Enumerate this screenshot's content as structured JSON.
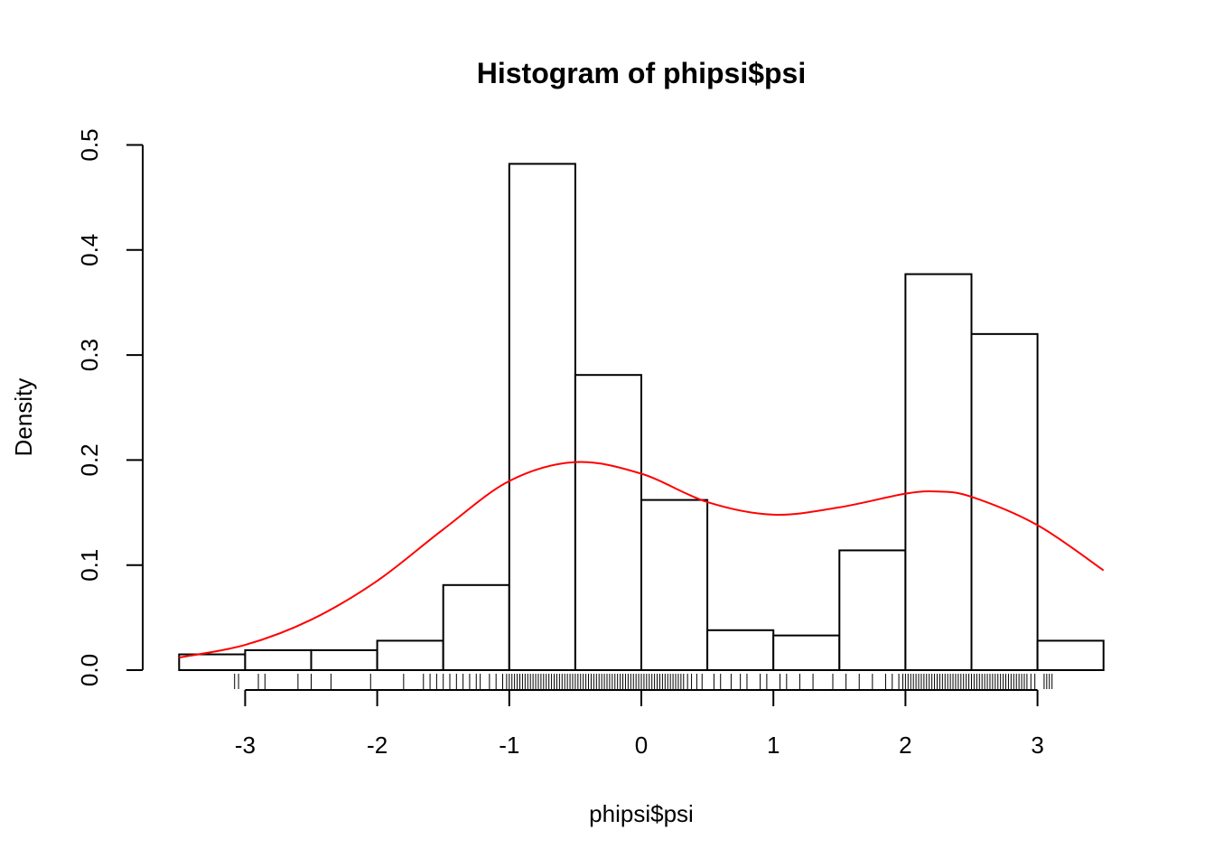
{
  "chart_data": {
    "type": "bar",
    "title": "Histogram of phipsi$psi",
    "xlabel": "phipsi$psi",
    "ylabel": "Density",
    "xlim": [
      -3.5,
      3.5
    ],
    "ylim": [
      0,
      0.5
    ],
    "x_ticks": [
      -3,
      -2,
      -1,
      0,
      1,
      2,
      3
    ],
    "x_tick_labels": [
      "-3",
      "-2",
      "-1",
      "0",
      "1",
      "2",
      "3"
    ],
    "y_ticks": [
      0,
      0.1,
      0.2,
      0.3,
      0.4,
      0.5
    ],
    "y_tick_labels": [
      "0.0",
      "0.1",
      "0.2",
      "0.3",
      "0.4",
      "0.5"
    ],
    "grid": false,
    "legend": "none",
    "histogram": {
      "breaks": [
        -3.5,
        -3.0,
        -2.5,
        -2.0,
        -1.5,
        -1.0,
        -0.5,
        0.0,
        0.5,
        1.0,
        1.5,
        2.0,
        2.5,
        3.0,
        3.5
      ],
      "density": [
        0.015,
        0.019,
        0.019,
        0.028,
        0.081,
        0.482,
        0.281,
        0.162,
        0.038,
        0.033,
        0.114,
        0.377,
        0.32,
        0.028
      ],
      "fill": "#ffffff",
      "border": "#000000"
    },
    "density_curve": {
      "color": "#ff0000",
      "x": [
        -3.5,
        -3.0,
        -2.5,
        -2.0,
        -1.5,
        -1.0,
        -0.5,
        0.0,
        0.5,
        1.0,
        1.5,
        2.0,
        2.25,
        2.5,
        3.0,
        3.5
      ],
      "y": [
        0.012,
        0.024,
        0.048,
        0.085,
        0.134,
        0.18,
        0.198,
        0.187,
        0.16,
        0.148,
        0.155,
        0.168,
        0.17,
        0.165,
        0.138,
        0.095
      ]
    },
    "rug": [
      -3.08,
      -3.05,
      -2.9,
      -2.85,
      -2.6,
      -2.5,
      -2.35,
      -2.05,
      -1.8,
      -1.65,
      -1.6,
      -1.55,
      -1.5,
      -1.45,
      -1.4,
      -1.35,
      -1.3,
      -1.25,
      -1.22,
      -1.15,
      -1.1,
      -1.05,
      -1.02,
      -1.0,
      -0.98,
      -0.96,
      -0.94,
      -0.92,
      -0.9,
      -0.88,
      -0.86,
      -0.84,
      -0.82,
      -0.8,
      -0.78,
      -0.76,
      -0.74,
      -0.72,
      -0.7,
      -0.68,
      -0.66,
      -0.64,
      -0.62,
      -0.6,
      -0.58,
      -0.56,
      -0.54,
      -0.52,
      -0.5,
      -0.48,
      -0.46,
      -0.44,
      -0.42,
      -0.4,
      -0.38,
      -0.36,
      -0.34,
      -0.32,
      -0.3,
      -0.28,
      -0.26,
      -0.24,
      -0.22,
      -0.2,
      -0.18,
      -0.16,
      -0.14,
      -0.12,
      -0.1,
      -0.08,
      -0.06,
      -0.04,
      -0.02,
      0.0,
      0.02,
      0.04,
      0.06,
      0.08,
      0.1,
      0.12,
      0.14,
      0.16,
      0.18,
      0.2,
      0.22,
      0.24,
      0.26,
      0.28,
      0.3,
      0.32,
      0.35,
      0.38,
      0.42,
      0.46,
      0.55,
      0.6,
      0.68,
      0.75,
      0.8,
      0.9,
      0.95,
      1.05,
      1.1,
      1.2,
      1.3,
      1.45,
      1.55,
      1.65,
      1.75,
      1.85,
      1.9,
      1.95,
      1.98,
      2.0,
      2.02,
      2.04,
      2.06,
      2.08,
      2.1,
      2.12,
      2.14,
      2.16,
      2.18,
      2.2,
      2.22,
      2.24,
      2.26,
      2.28,
      2.3,
      2.32,
      2.34,
      2.36,
      2.38,
      2.4,
      2.42,
      2.44,
      2.46,
      2.48,
      2.5,
      2.52,
      2.54,
      2.56,
      2.58,
      2.6,
      2.62,
      2.64,
      2.66,
      2.68,
      2.7,
      2.72,
      2.74,
      2.76,
      2.78,
      2.8,
      2.82,
      2.84,
      2.86,
      2.88,
      2.9,
      2.92,
      2.95,
      2.98,
      3.05,
      3.07,
      3.09,
      3.11
    ]
  }
}
